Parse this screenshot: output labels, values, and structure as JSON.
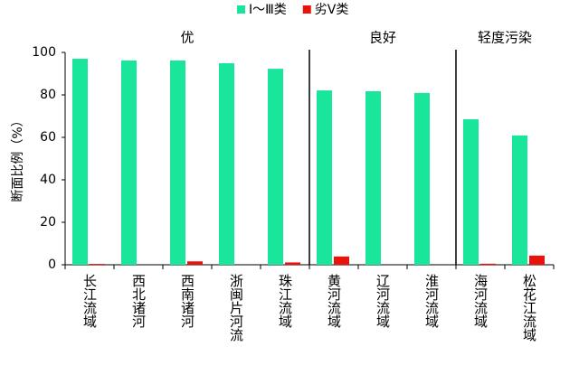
{
  "chart_data": {
    "type": "bar",
    "y_label": "断面比例（%）",
    "categories": [
      "长江流域",
      "西北诸河",
      "西南诸河",
      "浙闽片河流",
      "珠江流域",
      "黄河流域",
      "辽河流域",
      "淮河流域",
      "海河流域",
      "松花江流域"
    ],
    "series": [
      {
        "name": "Ⅰ～Ⅲ类",
        "color": "#19e69a",
        "values": [
          97.0,
          96.2,
          96.2,
          94.9,
          92.3,
          82.1,
          81.7,
          80.9,
          68.5,
          60.9
        ]
      },
      {
        "name": "劣Ⅴ类",
        "color": "#e8140c",
        "values": [
          0.4,
          0,
          1.6,
          0,
          1.1,
          3.9,
          0,
          0,
          0.5,
          4.3
        ]
      }
    ],
    "groups": [
      {
        "label": "优",
        "size": 5
      },
      {
        "label": "良好",
        "size": 3
      },
      {
        "label": "轻度污染",
        "size": 2
      }
    ],
    "ylim": [
      0,
      100
    ],
    "yticks": [
      0,
      20,
      40,
      60,
      80,
      100
    ],
    "grid": false,
    "legend": "top"
  }
}
